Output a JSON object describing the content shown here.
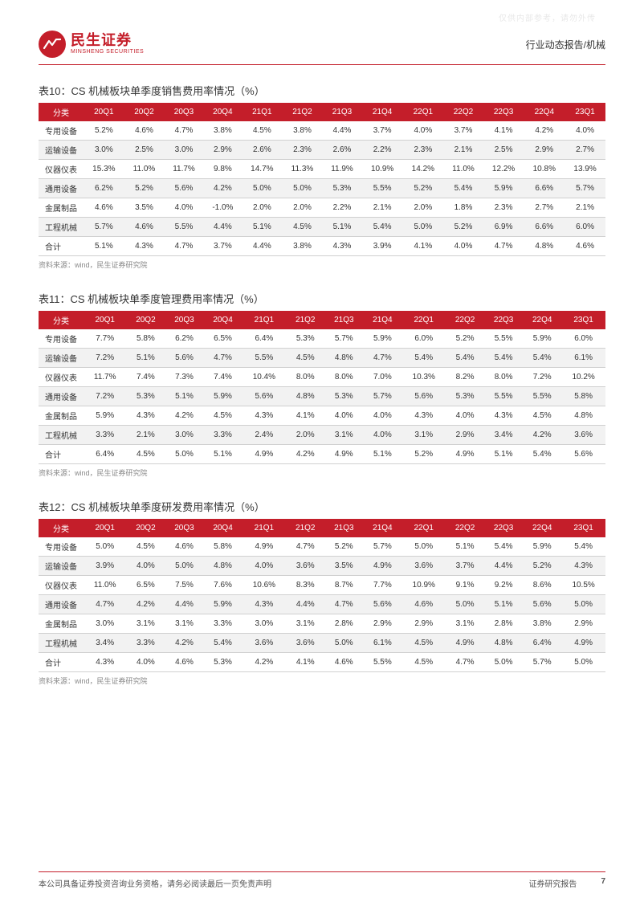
{
  "watermark": "仅供内部参考，请勿外传",
  "header": {
    "logo_cn": "民生证券",
    "logo_en": "MINSHENG SECURITIES",
    "right": "行业动态报告/机械"
  },
  "columns": [
    "分类",
    "20Q1",
    "20Q2",
    "20Q3",
    "20Q4",
    "21Q1",
    "21Q2",
    "21Q3",
    "21Q4",
    "22Q1",
    "22Q2",
    "22Q3",
    "22Q4",
    "23Q1"
  ],
  "row_labels": [
    "专用设备",
    "运输设备",
    "仪器仪表",
    "通用设备",
    "金属制品",
    "工程机械",
    "合计"
  ],
  "tables": [
    {
      "title": "表10：CS 机械板块单季度销售费用率情况（%）",
      "rows": [
        [
          "5.2%",
          "4.6%",
          "4.7%",
          "3.8%",
          "4.5%",
          "3.8%",
          "4.4%",
          "3.7%",
          "4.0%",
          "3.7%",
          "4.1%",
          "4.2%",
          "4.0%"
        ],
        [
          "3.0%",
          "2.5%",
          "3.0%",
          "2.9%",
          "2.6%",
          "2.3%",
          "2.6%",
          "2.2%",
          "2.3%",
          "2.1%",
          "2.5%",
          "2.9%",
          "2.7%"
        ],
        [
          "15.3%",
          "11.0%",
          "11.7%",
          "9.8%",
          "14.7%",
          "11.3%",
          "11.9%",
          "10.9%",
          "14.2%",
          "11.0%",
          "12.2%",
          "10.8%",
          "13.9%"
        ],
        [
          "6.2%",
          "5.2%",
          "5.6%",
          "4.2%",
          "5.0%",
          "5.0%",
          "5.3%",
          "5.5%",
          "5.2%",
          "5.4%",
          "5.9%",
          "6.6%",
          "5.7%"
        ],
        [
          "4.6%",
          "3.5%",
          "4.0%",
          "-1.0%",
          "2.0%",
          "2.0%",
          "2.2%",
          "2.1%",
          "2.0%",
          "1.8%",
          "2.3%",
          "2.7%",
          "2.1%"
        ],
        [
          "5.7%",
          "4.6%",
          "5.5%",
          "4.4%",
          "5.1%",
          "4.5%",
          "5.1%",
          "5.4%",
          "5.0%",
          "5.2%",
          "6.9%",
          "6.6%",
          "6.0%"
        ],
        [
          "5.1%",
          "4.3%",
          "4.7%",
          "3.7%",
          "4.4%",
          "3.8%",
          "4.3%",
          "3.9%",
          "4.1%",
          "4.0%",
          "4.7%",
          "4.8%",
          "4.6%"
        ]
      ]
    },
    {
      "title": "表11：CS 机械板块单季度管理费用率情况（%）",
      "rows": [
        [
          "7.7%",
          "5.8%",
          "6.2%",
          "6.5%",
          "6.4%",
          "5.3%",
          "5.7%",
          "5.9%",
          "6.0%",
          "5.2%",
          "5.5%",
          "5.9%",
          "6.0%"
        ],
        [
          "7.2%",
          "5.1%",
          "5.6%",
          "4.7%",
          "5.5%",
          "4.5%",
          "4.8%",
          "4.7%",
          "5.4%",
          "5.4%",
          "5.4%",
          "5.4%",
          "6.1%"
        ],
        [
          "11.7%",
          "7.4%",
          "7.3%",
          "7.4%",
          "10.4%",
          "8.0%",
          "8.0%",
          "7.0%",
          "10.3%",
          "8.2%",
          "8.0%",
          "7.2%",
          "10.2%"
        ],
        [
          "7.2%",
          "5.3%",
          "5.1%",
          "5.9%",
          "5.6%",
          "4.8%",
          "5.3%",
          "5.7%",
          "5.6%",
          "5.3%",
          "5.5%",
          "5.5%",
          "5.8%"
        ],
        [
          "5.9%",
          "4.3%",
          "4.2%",
          "4.5%",
          "4.3%",
          "4.1%",
          "4.0%",
          "4.0%",
          "4.3%",
          "4.0%",
          "4.3%",
          "4.5%",
          "4.8%"
        ],
        [
          "3.3%",
          "2.1%",
          "3.0%",
          "3.3%",
          "2.4%",
          "2.0%",
          "3.1%",
          "4.0%",
          "3.1%",
          "2.9%",
          "3.4%",
          "4.2%",
          "3.6%"
        ],
        [
          "6.4%",
          "4.5%",
          "5.0%",
          "5.1%",
          "4.9%",
          "4.2%",
          "4.9%",
          "5.1%",
          "5.2%",
          "4.9%",
          "5.1%",
          "5.4%",
          "5.6%"
        ]
      ]
    },
    {
      "title": "表12：CS 机械板块单季度研发费用率情况（%）",
      "rows": [
        [
          "5.0%",
          "4.5%",
          "4.6%",
          "5.8%",
          "4.9%",
          "4.7%",
          "5.2%",
          "5.7%",
          "5.0%",
          "5.1%",
          "5.4%",
          "5.9%",
          "5.4%"
        ],
        [
          "3.9%",
          "4.0%",
          "5.0%",
          "4.8%",
          "4.0%",
          "3.6%",
          "3.5%",
          "4.9%",
          "3.6%",
          "3.7%",
          "4.4%",
          "5.2%",
          "4.3%"
        ],
        [
          "11.0%",
          "6.5%",
          "7.5%",
          "7.6%",
          "10.6%",
          "8.3%",
          "8.7%",
          "7.7%",
          "10.9%",
          "9.1%",
          "9.2%",
          "8.6%",
          "10.5%"
        ],
        [
          "4.7%",
          "4.2%",
          "4.4%",
          "5.9%",
          "4.3%",
          "4.4%",
          "4.7%",
          "5.6%",
          "4.6%",
          "5.0%",
          "5.1%",
          "5.6%",
          "5.0%"
        ],
        [
          "3.0%",
          "3.1%",
          "3.1%",
          "3.3%",
          "3.0%",
          "3.1%",
          "2.8%",
          "2.9%",
          "2.9%",
          "3.1%",
          "2.8%",
          "3.8%",
          "2.9%"
        ],
        [
          "3.4%",
          "3.3%",
          "4.2%",
          "5.4%",
          "3.6%",
          "3.6%",
          "5.0%",
          "6.1%",
          "4.5%",
          "4.9%",
          "4.8%",
          "6.4%",
          "4.9%"
        ],
        [
          "4.3%",
          "4.0%",
          "4.6%",
          "5.3%",
          "4.2%",
          "4.1%",
          "4.6%",
          "5.5%",
          "4.5%",
          "4.7%",
          "5.0%",
          "5.7%",
          "5.0%"
        ]
      ]
    }
  ],
  "source": "资料来源：wind，民生证券研究院",
  "footer": {
    "left": "本公司具备证券投资咨询业务资格，请务必阅读最后一页免责声明",
    "right_label": "证券研究报告",
    "page": "7"
  },
  "colors": {
    "brand": "#c41e2a",
    "alt_row": "#f2f2f2",
    "border": "#d0d0d0"
  }
}
